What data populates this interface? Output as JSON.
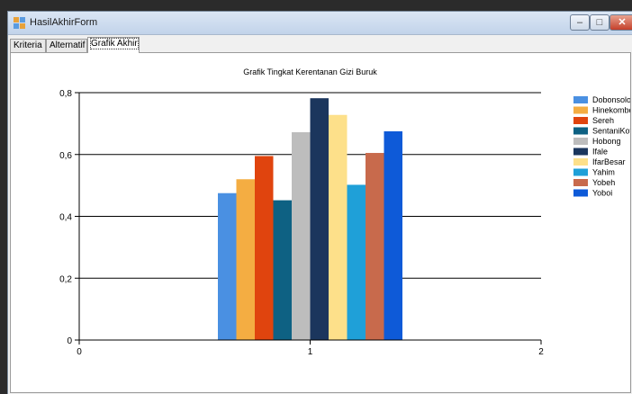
{
  "window": {
    "title": "HasilAkhirForm",
    "buttons": {
      "minimize": "–",
      "maximize": "□",
      "close": "✕"
    }
  },
  "tabs": [
    {
      "label": "Kriteria",
      "active": false
    },
    {
      "label": "Alternatif",
      "active": false
    },
    {
      "label": "Grafik Akhir",
      "active": true
    }
  ],
  "chart_data": {
    "type": "bar",
    "title": "Grafik Tingkat Kerentanan Gizi Buruk",
    "xlabel": "",
    "ylabel": "",
    "x_ticks": [
      "0",
      "1",
      "2"
    ],
    "y_ticks": [
      "0",
      "0,2",
      "0,4",
      "0,6",
      "0,8"
    ],
    "xlim": [
      0,
      2
    ],
    "ylim": [
      0,
      0.8
    ],
    "grid": "horizontal",
    "legend_position": "right",
    "category": 1,
    "series": [
      {
        "name": "Dobonsolo",
        "value": 0.475,
        "color": "#4a90e2"
      },
      {
        "name": "Hinekombe",
        "value": 0.52,
        "color": "#f4ad42"
      },
      {
        "name": "Sereh",
        "value": 0.595,
        "color": "#e0440e"
      },
      {
        "name": "SentaniKota",
        "value": 0.452,
        "color": "#0e6183"
      },
      {
        "name": "Hobong",
        "value": 0.672,
        "color": "#bdbdbd"
      },
      {
        "name": "Ifale",
        "value": 0.782,
        "color": "#1b365d"
      },
      {
        "name": "IfarBesar",
        "value": 0.728,
        "color": "#fde08a"
      },
      {
        "name": "Yahim",
        "value": 0.502,
        "color": "#1fa0d8"
      },
      {
        "name": "Yobeh",
        "value": 0.605,
        "color": "#c86a4c"
      },
      {
        "name": "Yoboi",
        "value": 0.675,
        "color": "#0e5ad8"
      }
    ]
  }
}
